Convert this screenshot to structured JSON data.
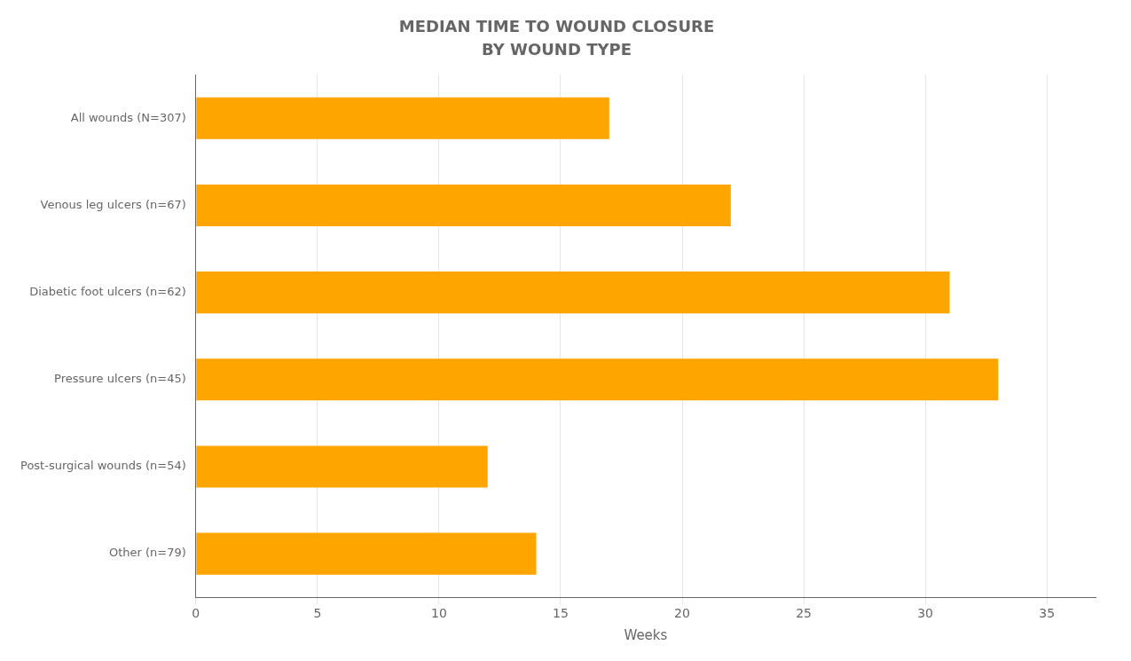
{
  "chart_data": {
    "type": "bar",
    "orientation": "horizontal",
    "title": "MEDIAN TIME TO WOUND CLOSURE",
    "subtitle": "BY WOUND TYPE",
    "x_label": "Weeks",
    "categories": [
      "All wounds (N=307)",
      "Venous leg ulcers (n=67)",
      "Diabetic foot ulcers (n=62)",
      "Pressure ulcers (n=45)",
      "Post-surgical wounds (n=54)",
      "Other (n=79)"
    ],
    "values": [
      17,
      22,
      31,
      33,
      12,
      14
    ],
    "color": "#FFA500",
    "xlim": [
      0,
      37
    ],
    "xticks": [
      0,
      5,
      10,
      15,
      20,
      25,
      30,
      35
    ],
    "grid": true
  }
}
